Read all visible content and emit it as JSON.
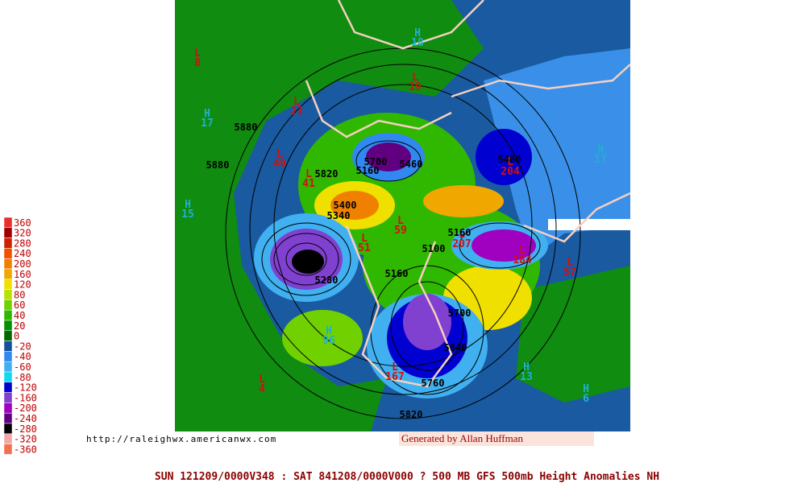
{
  "legend": {
    "labels": [
      "360",
      "320",
      "280",
      "240",
      "200",
      "160",
      "120",
      "80",
      "60",
      "40",
      "20",
      "0",
      "-20",
      "-40",
      "-60",
      "-80",
      "-120",
      "-160",
      "-200",
      "-240",
      "-280",
      "-320",
      "-360"
    ],
    "colors": [
      "#e83030",
      "#a00000",
      "#d02000",
      "#f05000",
      "#f08000",
      "#f0a800",
      "#f0e000",
      "#b8e000",
      "#70d000",
      "#30b800",
      "#009000",
      "#006800",
      "#1050a0",
      "#3088f0",
      "#40b0f0",
      "#10d8f0",
      "#0000d0",
      "#8040d0",
      "#a000c0",
      "#600080",
      "#000000",
      "#f0a8a8",
      "#f07050"
    ]
  },
  "url": "http://raleighwx.americanwx.com",
  "credit": "Generated by Allan Huffman",
  "footer": "SUN 121209/0000V348 : SAT 841208/0000V000  ? 500 MB GFS 500mb Height Anomalies NH",
  "pressure_centers": [
    {
      "type": "L",
      "value": "8"
    },
    {
      "type": "H",
      "value": "18"
    },
    {
      "type": "L",
      "value": "19"
    },
    {
      "type": "H",
      "value": "17"
    },
    {
      "type": "L",
      "value": "23"
    },
    {
      "type": "L",
      "value": "40"
    },
    {
      "type": "L",
      "value": "41"
    },
    {
      "type": "H",
      "value": "15"
    },
    {
      "type": "L",
      "value": "59"
    },
    {
      "type": "L",
      "value": "51"
    },
    {
      "type": "H",
      "value": "17"
    },
    {
      "type": "L",
      "value": "204"
    },
    {
      "type": "L",
      "value": "207"
    },
    {
      "type": "L",
      "value": "184"
    },
    {
      "type": "L",
      "value": "57"
    },
    {
      "type": "H",
      "value": "96"
    },
    {
      "type": "L",
      "value": "167"
    },
    {
      "type": "L",
      "value": "4"
    },
    {
      "type": "H",
      "value": "13"
    },
    {
      "type": "H",
      "value": "6"
    }
  ],
  "contour_labels": [
    "5880",
    "5880",
    "5820",
    "5700",
    "5160",
    "5460",
    "5460",
    "5400",
    "5340",
    "5160",
    "5100",
    "5160",
    "5280",
    "5700",
    "5640",
    "5760",
    "5820"
  ]
}
